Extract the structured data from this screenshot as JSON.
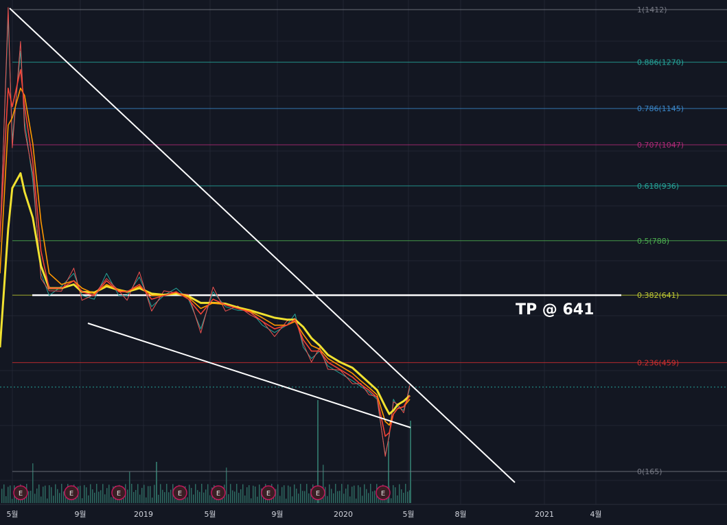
{
  "chart_data": {
    "type": "line",
    "title": "",
    "annotation": "TP @ 641",
    "x_ticks": [
      "5월",
      "9월",
      "2019",
      "5월",
      "9월",
      "2020",
      "5월",
      "8월",
      "2021",
      "4월"
    ],
    "fib_levels": [
      {
        "label": "1(1412)",
        "ratio": 1,
        "price": 1412,
        "color": "#787b86"
      },
      {
        "label": "0.886(1270)",
        "ratio": 0.886,
        "price": 1270,
        "color": "#26a69a"
      },
      {
        "label": "0.786(1145)",
        "ratio": 0.786,
        "price": 1145,
        "color": "#3a86c8"
      },
      {
        "label": "0.707(1047)",
        "ratio": 0.707,
        "price": 1047,
        "color": "#b02a78"
      },
      {
        "label": "0.618(936)",
        "ratio": 0.618,
        "price": 936,
        "color": "#26a69a"
      },
      {
        "label": "0.5(788)",
        "ratio": 0.5,
        "price": 788,
        "color": "#4caf50"
      },
      {
        "label": "0.382(641)",
        "ratio": 0.382,
        "price": 641,
        "color": "#c0ca33"
      },
      {
        "label": "0.236(459)",
        "ratio": 0.236,
        "price": 459,
        "color": "#d32f2f"
      },
      {
        "label": "0(165)",
        "ratio": 0,
        "price": 165,
        "color": "#787b86"
      }
    ],
    "earnings_markers": [
      "E",
      "E",
      "E",
      "E",
      "E",
      "E",
      "E",
      "E"
    ],
    "price_series": {
      "name": "",
      "t": [
        0,
        0.02,
        0.03,
        0.05,
        0.06,
        0.08,
        0.1,
        0.12,
        0.15,
        0.18,
        0.2,
        0.23,
        0.26,
        0.29,
        0.31,
        0.34,
        0.37,
        0.4,
        0.43,
        0.46,
        0.49,
        0.52,
        0.55,
        0.58,
        0.61,
        0.64,
        0.67,
        0.7,
        0.72,
        0.74,
        0.76,
        0.78,
        0.8,
        0.83,
        0.86,
        0.88,
        0.9,
        0.92,
        0.94,
        0.95,
        0.96,
        0.97,
        0.985,
        1.0
      ],
      "price": [
        800,
        1390,
        1060,
        1300,
        1110,
        950,
        700,
        640,
        665,
        700,
        640,
        630,
        700,
        640,
        640,
        690,
        610,
        640,
        660,
        630,
        550,
        650,
        610,
        600,
        600,
        560,
        540,
        560,
        590,
        500,
        470,
        490,
        450,
        430,
        410,
        395,
        380,
        360,
        210,
        260,
        360,
        340,
        330,
        390
      ]
    },
    "ema_fast": [
      800,
      1200,
      1150,
      1250,
      1150,
      1000,
      760,
      660,
      660,
      680,
      650,
      640,
      680,
      650,
      650,
      670,
      630,
      640,
      650,
      630,
      590,
      630,
      615,
      605,
      595,
      570,
      550,
      560,
      575,
      520,
      490,
      490,
      460,
      440,
      420,
      400,
      385,
      365,
      260,
      270,
      320,
      335,
      340,
      370
    ],
    "ema_mid": [
      700,
      1100,
      1120,
      1200,
      1180,
      1050,
      840,
      700,
      670,
      680,
      660,
      645,
      670,
      655,
      650,
      665,
      640,
      640,
      648,
      635,
      605,
      620,
      615,
      605,
      598,
      580,
      560,
      560,
      570,
      535,
      505,
      495,
      470,
      450,
      430,
      410,
      392,
      372,
      300,
      290,
      320,
      335,
      340,
      360
    ],
    "ema_slow": [
      500,
      820,
      930,
      970,
      920,
      850,
      720,
      660,
      660,
      670,
      650,
      648,
      665,
      655,
      650,
      660,
      645,
      642,
      645,
      638,
      620,
      620,
      618,
      608,
      600,
      590,
      580,
      575,
      575,
      555,
      525,
      505,
      480,
      460,
      445,
      425,
      405,
      385,
      340,
      320,
      330,
      345,
      355,
      370
    ],
    "ylim": [
      165,
      1412
    ]
  }
}
